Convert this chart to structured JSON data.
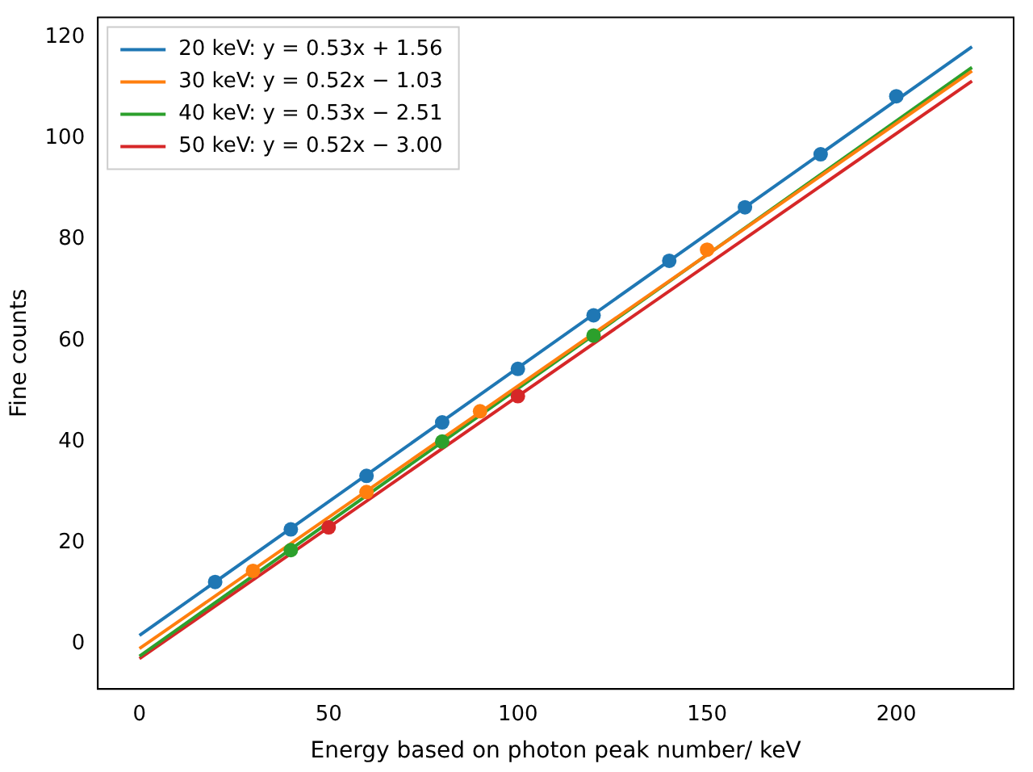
{
  "chart_data": {
    "type": "scatter",
    "xlabel": "Energy based on photon peak number/ keV",
    "ylabel": "Fine counts",
    "xlim": [
      -11,
      231
    ],
    "ylim": [
      -9,
      124
    ],
    "xticks": [
      0,
      50,
      100,
      150,
      200
    ],
    "yticks": [
      0,
      20,
      40,
      60,
      80,
      100,
      120
    ],
    "grid": false,
    "legend": "top left",
    "marker": "circle",
    "series": [
      {
        "type": "line",
        "name": "20 keV: y = 0.53x + 1.56",
        "color": "#1f77b4",
        "x": [
          0,
          220
        ],
        "values": [
          1.6,
          118.2
        ],
        "marker": "none"
      },
      {
        "type": "line",
        "name": "30 keV: y = 0.52x − 1.03",
        "color": "#ff7f0e",
        "x": [
          0,
          220
        ],
        "values": [
          -1.0,
          113.4
        ],
        "marker": "none"
      },
      {
        "type": "line",
        "name": "40 keV: y = 0.53x − 2.51",
        "color": "#2ca02c",
        "x": [
          0,
          220
        ],
        "values": [
          -2.5,
          114.1
        ],
        "marker": "none"
      },
      {
        "type": "line",
        "name": "50 keV: y = 0.52x − 3.00",
        "color": "#d62728",
        "x": [
          0,
          220
        ],
        "values": [
          -3.0,
          111.4
        ],
        "marker": "none"
      },
      {
        "color": "#1f77b4",
        "x": [
          20,
          40,
          60,
          80,
          100,
          120,
          140,
          160,
          180,
          200
        ],
        "values": [
          12.2,
          22.6,
          33.2,
          43.8,
          54.4,
          65.0,
          75.8,
          86.4,
          96.9,
          108.4
        ]
      },
      {
        "color": "#ff7f0e",
        "x": [
          30,
          60,
          90,
          150
        ],
        "values": [
          14.4,
          30.0,
          46.0,
          78.0
        ]
      },
      {
        "color": "#2ca02c",
        "x": [
          40,
          80,
          120
        ],
        "values": [
          18.5,
          40.0,
          61.0
        ]
      },
      {
        "color": "#d62728",
        "x": [
          50,
          100
        ],
        "values": [
          23.0,
          49.0
        ]
      }
    ]
  }
}
